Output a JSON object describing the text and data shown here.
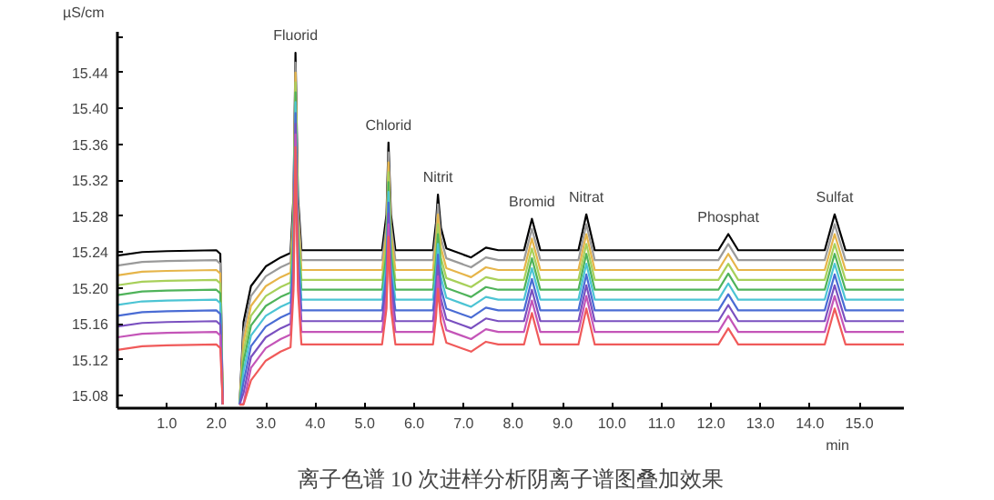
{
  "chart_data": {
    "type": "line",
    "xlabel": "min",
    "ylabel": "µS/cm",
    "x": [
      0,
      0.5,
      1.0,
      2.0,
      2.08,
      2.13,
      2.3,
      2.47,
      2.55,
      2.7,
      3.0,
      3.3,
      3.5,
      3.56,
      3.6,
      3.65,
      3.72,
      5.35,
      5.44,
      5.48,
      5.53,
      5.62,
      6.38,
      6.44,
      6.48,
      6.54,
      6.65,
      7.15,
      7.45,
      7.7,
      8.22,
      8.38,
      8.55,
      9.32,
      9.48,
      9.65,
      12.15,
      12.35,
      12.55,
      14.3,
      14.5,
      14.72,
      15.9
    ],
    "series": [
      {
        "color": "#000000",
        "values": [
          15.236,
          15.24,
          15.241,
          15.242,
          15.238,
          15.07,
          null,
          15.07,
          15.162,
          15.202,
          15.224,
          15.234,
          15.239,
          15.302,
          15.462,
          15.302,
          15.242,
          15.242,
          15.282,
          15.362,
          15.282,
          15.242,
          15.242,
          15.272,
          15.304,
          15.267,
          15.244,
          15.234,
          15.245,
          15.242,
          15.242,
          15.277,
          15.242,
          15.242,
          15.282,
          15.242,
          15.242,
          15.26,
          15.242,
          15.242,
          15.282,
          15.242,
          15.242
        ]
      },
      {
        "color": "#9a9a9a",
        "values": [
          15.225,
          15.229,
          15.23,
          15.231,
          15.227,
          15.07,
          null,
          15.07,
          15.151,
          15.191,
          15.213,
          15.223,
          15.228,
          15.291,
          15.451,
          15.291,
          15.231,
          15.231,
          15.271,
          15.351,
          15.271,
          15.231,
          15.231,
          15.261,
          15.293,
          15.256,
          15.233,
          15.223,
          15.234,
          15.231,
          15.231,
          15.266,
          15.231,
          15.231,
          15.271,
          15.231,
          15.231,
          15.249,
          15.231,
          15.231,
          15.271,
          15.231,
          15.231
        ]
      },
      {
        "color": "#e6b54a",
        "values": [
          15.214,
          15.218,
          15.219,
          15.22,
          15.216,
          15.07,
          null,
          15.07,
          15.14,
          15.18,
          15.202,
          15.212,
          15.217,
          15.28,
          15.44,
          15.28,
          15.22,
          15.22,
          15.26,
          15.34,
          15.26,
          15.22,
          15.22,
          15.25,
          15.282,
          15.245,
          15.222,
          15.212,
          15.223,
          15.22,
          15.22,
          15.255,
          15.22,
          15.22,
          15.26,
          15.22,
          15.22,
          15.238,
          15.22,
          15.22,
          15.26,
          15.22,
          15.22
        ]
      },
      {
        "color": "#a8d05a",
        "values": [
          15.203,
          15.207,
          15.208,
          15.209,
          15.205,
          15.07,
          null,
          15.07,
          15.129,
          15.169,
          15.191,
          15.201,
          15.206,
          15.269,
          15.429,
          15.269,
          15.209,
          15.209,
          15.249,
          15.329,
          15.249,
          15.209,
          15.209,
          15.239,
          15.271,
          15.234,
          15.211,
          15.201,
          15.212,
          15.209,
          15.209,
          15.244,
          15.209,
          15.209,
          15.249,
          15.209,
          15.209,
          15.227,
          15.209,
          15.209,
          15.249,
          15.209,
          15.209
        ]
      },
      {
        "color": "#4fb35a",
        "values": [
          15.192,
          15.196,
          15.197,
          15.198,
          15.194,
          15.07,
          null,
          15.07,
          15.118,
          15.158,
          15.18,
          15.19,
          15.195,
          15.258,
          15.418,
          15.258,
          15.198,
          15.198,
          15.238,
          15.318,
          15.238,
          15.198,
          15.198,
          15.228,
          15.26,
          15.223,
          15.2,
          15.19,
          15.201,
          15.198,
          15.198,
          15.233,
          15.198,
          15.198,
          15.238,
          15.198,
          15.198,
          15.216,
          15.198,
          15.198,
          15.238,
          15.198,
          15.198
        ]
      },
      {
        "color": "#4cc4d4",
        "values": [
          15.181,
          15.185,
          15.186,
          15.187,
          15.183,
          15.07,
          null,
          15.07,
          15.107,
          15.147,
          15.169,
          15.179,
          15.184,
          15.247,
          15.407,
          15.247,
          15.187,
          15.187,
          15.227,
          15.307,
          15.227,
          15.187,
          15.187,
          15.217,
          15.249,
          15.212,
          15.189,
          15.179,
          15.19,
          15.187,
          15.187,
          15.222,
          15.187,
          15.187,
          15.227,
          15.187,
          15.187,
          15.205,
          15.187,
          15.187,
          15.227,
          15.187,
          15.187
        ]
      },
      {
        "color": "#4a6cd4",
        "values": [
          15.169,
          15.173,
          15.174,
          15.175,
          15.171,
          15.07,
          null,
          15.07,
          15.095,
          15.135,
          15.157,
          15.167,
          15.172,
          15.235,
          15.395,
          15.235,
          15.175,
          15.175,
          15.215,
          15.295,
          15.215,
          15.175,
          15.175,
          15.205,
          15.237,
          15.2,
          15.177,
          15.167,
          15.178,
          15.175,
          15.175,
          15.21,
          15.175,
          15.175,
          15.215,
          15.175,
          15.175,
          15.193,
          15.175,
          15.175,
          15.215,
          15.175,
          15.175
        ]
      },
      {
        "color": "#7a50c0",
        "values": [
          15.157,
          15.161,
          15.162,
          15.163,
          15.159,
          15.07,
          null,
          15.07,
          15.083,
          15.123,
          15.145,
          15.155,
          15.16,
          15.223,
          15.383,
          15.223,
          15.163,
          15.163,
          15.203,
          15.283,
          15.203,
          15.163,
          15.163,
          15.193,
          15.225,
          15.188,
          15.165,
          15.155,
          15.166,
          15.163,
          15.163,
          15.198,
          15.163,
          15.163,
          15.203,
          15.163,
          15.163,
          15.181,
          15.163,
          15.163,
          15.203,
          15.163,
          15.163
        ]
      },
      {
        "color": "#c455b8",
        "values": [
          15.145,
          15.149,
          15.15,
          15.151,
          15.147,
          15.07,
          null,
          15.07,
          15.071,
          15.111,
          15.133,
          15.143,
          15.148,
          15.211,
          15.371,
          15.211,
          15.151,
          15.151,
          15.191,
          15.271,
          15.191,
          15.151,
          15.151,
          15.181,
          15.213,
          15.176,
          15.153,
          15.143,
          15.154,
          15.151,
          15.151,
          15.186,
          15.151,
          15.151,
          15.191,
          15.151,
          15.151,
          15.169,
          15.151,
          15.151,
          15.191,
          15.151,
          15.151
        ]
      },
      {
        "color": "#f05a5a",
        "values": [
          15.131,
          15.135,
          15.136,
          15.137,
          15.133,
          15.07,
          null,
          15.07,
          15.07,
          15.097,
          15.119,
          15.129,
          15.134,
          15.197,
          15.357,
          15.197,
          15.137,
          15.137,
          15.177,
          15.257,
          15.177,
          15.137,
          15.137,
          15.167,
          15.199,
          15.162,
          15.139,
          15.129,
          15.14,
          15.137,
          15.137,
          15.172,
          15.137,
          15.137,
          15.177,
          15.137,
          15.137,
          15.155,
          15.137,
          15.137,
          15.177,
          15.137,
          15.137
        ]
      }
    ],
    "xlim": [
      0,
      15.9
    ],
    "ylim": [
      15.066,
      15.485
    ],
    "xticks": [
      {
        "value": 1,
        "label": "1.0"
      },
      {
        "value": 2,
        "label": "2.0"
      },
      {
        "value": 3,
        "label": "3.0"
      },
      {
        "value": 4,
        "label": "4.0"
      },
      {
        "value": 5,
        "label": "5.0"
      },
      {
        "value": 6,
        "label": "6.0"
      },
      {
        "value": 7,
        "label": "7.0"
      },
      {
        "value": 8,
        "label": "8.0"
      },
      {
        "value": 9,
        "label": "9.0"
      },
      {
        "value": 10,
        "label": "10.0"
      },
      {
        "value": 11,
        "label": "11.0"
      },
      {
        "value": 12,
        "label": "12.0"
      },
      {
        "value": 13,
        "label": "13.0"
      },
      {
        "value": 14,
        "label": "14.0"
      },
      {
        "value": 15,
        "label": "15.0"
      }
    ],
    "yticks": [
      15.08,
      15.12,
      15.16,
      {
        "value": 15.2,
        "label": "15.20"
      },
      15.24,
      15.28,
      15.32,
      15.36,
      {
        "value": 15.4,
        "label": "15.40"
      },
      15.44,
      {
        "value": 15.48,
        "label": null
      }
    ],
    "grid": false,
    "marker": "none",
    "line_style": "solid",
    "annotations": [
      {
        "text": "Fluorid",
        "x": 3.6,
        "y": 15.462
      },
      {
        "text": "Chlorid",
        "x": 5.48,
        "y": 15.362
      },
      {
        "text": "Nitrit",
        "x": 6.48,
        "y": 15.304
      },
      {
        "text": "Bromid",
        "x": 8.38,
        "y": 15.277
      },
      {
        "text": "Nitrat",
        "x": 9.48,
        "y": 15.282
      },
      {
        "text": "Phosphat",
        "x": 12.35,
        "y": 15.26
      },
      {
        "text": "Sulfat",
        "x": 14.5,
        "y": 15.282
      },
      "离子色谱 10 次进样分析阴离子谱图叠加效果"
    ]
  }
}
